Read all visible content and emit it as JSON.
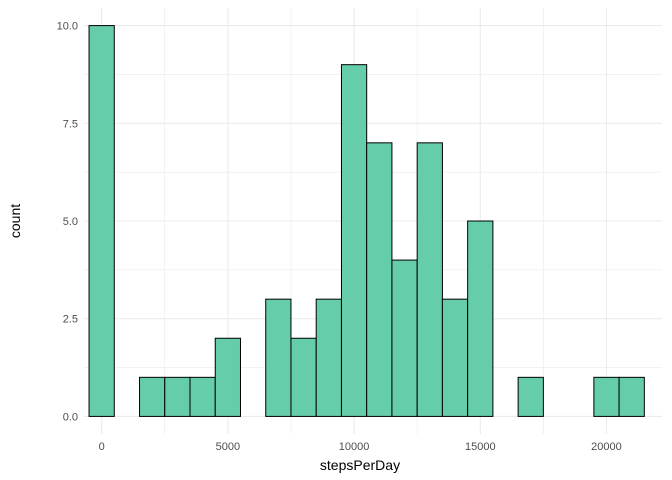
{
  "chart_data": {
    "type": "bar",
    "subtype": "histogram",
    "title": "",
    "xlabel": "stepsPerDay",
    "ylabel": "count",
    "bin_width": 1000,
    "bin_centers": [
      0,
      2000,
      3000,
      4000,
      5000,
      7000,
      8000,
      9000,
      10000,
      11000,
      12000,
      13000,
      14000,
      15000,
      17000,
      20000,
      21000
    ],
    "counts": [
      10,
      1,
      1,
      1,
      2,
      3,
      2,
      3,
      9,
      7,
      4,
      7,
      3,
      5,
      1,
      1,
      1
    ],
    "xlim": [
      -700,
      22200
    ],
    "ylim": [
      -0.45,
      10.45
    ],
    "xticks": [
      0,
      5000,
      10000,
      15000,
      20000
    ],
    "xtick_labels": [
      "0",
      "5000",
      "10000",
      "15000",
      "20000"
    ],
    "yticks": [
      0,
      2.5,
      5,
      7.5,
      10
    ],
    "ytick_labels": [
      "0.0",
      "2.5",
      "5.0",
      "7.5",
      "10.0"
    ],
    "grid": true,
    "bar_fill": "#66CDAA",
    "bar_stroke": "#000000",
    "grid_color": "#ebebeb",
    "background": "#ffffff"
  }
}
